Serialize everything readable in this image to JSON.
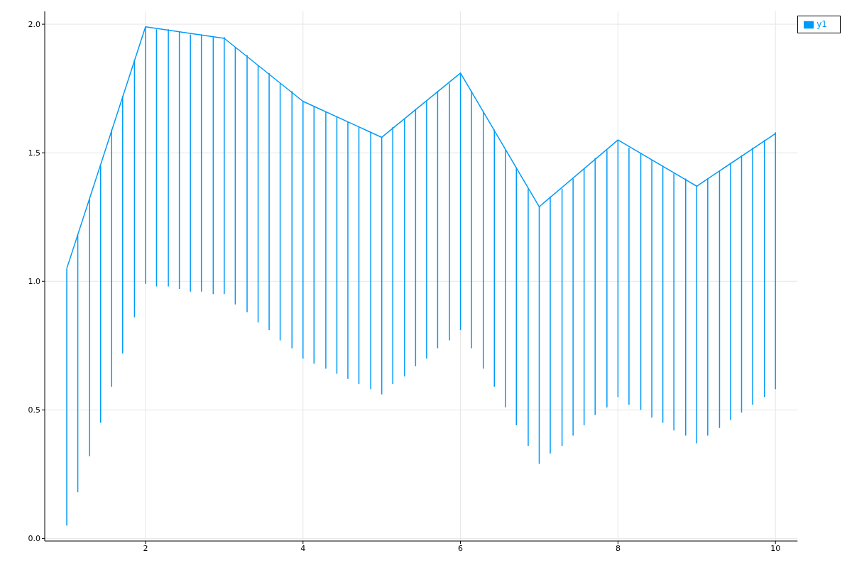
{
  "chart_data": {
    "type": "line",
    "series": [
      {
        "name": "y1",
        "color": "#009af9",
        "x": [
          1,
          2,
          3,
          4,
          5,
          6,
          7,
          8,
          9,
          10
        ],
        "values": [
          1.05,
          1.99,
          1.945,
          1.7,
          1.56,
          1.81,
          1.29,
          1.55,
          1.37,
          1.575
        ]
      },
      {
        "type": "bar",
        "color": "#009af9",
        "x": [
          1,
          1.14,
          1.29,
          1.43,
          1.57,
          1.71,
          1.86,
          2,
          2.14,
          2.29,
          2.43,
          2.57,
          2.71,
          2.86,
          3,
          3.14,
          3.29,
          3.43,
          3.57,
          3.71,
          3.86,
          4,
          4.14,
          4.29,
          4.43,
          4.57,
          4.71,
          4.86,
          5,
          5.14,
          5.29,
          5.43,
          5.57,
          5.71,
          5.86,
          6,
          6.14,
          6.29,
          6.43,
          6.57,
          6.71,
          6.86,
          7,
          7.14,
          7.29,
          7.43,
          7.57,
          7.71,
          7.86,
          8,
          8.14,
          8.29,
          8.43,
          8.57,
          8.71,
          8.86,
          9,
          9.14,
          9.29,
          9.43,
          9.57,
          9.71,
          9.86,
          10
        ],
        "base": [
          0.05,
          0.18,
          0.32,
          0.45,
          0.59,
          0.72,
          0.86,
          0.99,
          0.98,
          0.98,
          0.97,
          0.96,
          0.96,
          0.95,
          0.95,
          0.91,
          0.88,
          0.84,
          0.81,
          0.77,
          0.74,
          0.7,
          0.68,
          0.66,
          0.64,
          0.62,
          0.6,
          0.58,
          0.56,
          0.6,
          0.63,
          0.67,
          0.7,
          0.74,
          0.77,
          0.81,
          0.74,
          0.66,
          0.59,
          0.51,
          0.44,
          0.36,
          0.29,
          0.33,
          0.36,
          0.4,
          0.44,
          0.48,
          0.51,
          0.55,
          0.52,
          0.5,
          0.47,
          0.45,
          0.42,
          0.4,
          0.37,
          0.4,
          0.43,
          0.46,
          0.49,
          0.52,
          0.55,
          0.58
        ],
        "values": [
          1,
          1,
          1,
          1,
          1,
          1,
          1,
          1,
          1,
          1,
          1,
          1,
          1,
          1,
          1,
          1,
          1,
          1,
          1,
          1,
          1,
          1,
          1,
          1,
          1,
          1,
          1,
          1,
          1,
          1,
          1,
          1,
          1,
          1,
          1,
          1,
          1,
          1,
          1,
          1,
          1,
          1,
          1,
          1,
          1,
          1,
          1,
          1,
          1,
          1,
          1,
          1,
          1,
          1,
          1,
          1,
          1,
          1,
          1,
          1,
          1,
          1,
          1,
          1
        ]
      }
    ],
    "xlim": [
      0.72,
      10.28
    ],
    "xticks": [
      2,
      4,
      6,
      8,
      10
    ],
    "ylim": [
      -0.01,
      2.05
    ],
    "yticks": [
      {
        "value": 0,
        "label": "0.0"
      },
      {
        "value": 0.5,
        "label": "0.5"
      },
      {
        "value": 1,
        "label": "1.0"
      },
      {
        "value": 1.5,
        "label": "1.5"
      },
      {
        "value": 2,
        "label": "2.0"
      }
    ],
    "grid": true,
    "legend": "top right",
    "marker": "none",
    "line_style": "solid"
  }
}
